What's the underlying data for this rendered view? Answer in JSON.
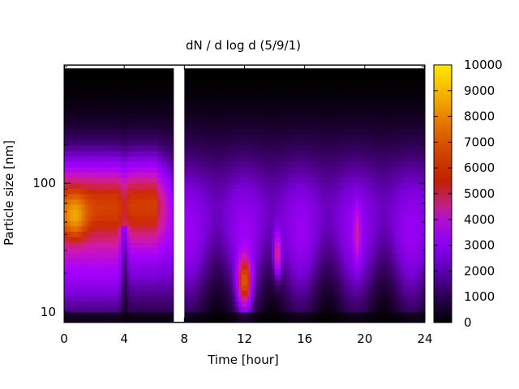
{
  "chart_data": {
    "type": "heatmap",
    "title": "dN / d log d (5/9/1)",
    "xlabel": "Time [hour]",
    "ylabel": "Particle size [nm]",
    "x_range": [
      0,
      24
    ],
    "x_ticks": [
      0,
      4,
      8,
      12,
      16,
      20,
      24
    ],
    "x_tick_labels": [
      "0",
      "4",
      "8",
      "12",
      "16",
      "20",
      "24"
    ],
    "y_scale": "log",
    "y_range": [
      8.3,
      830
    ],
    "y_ticks": [
      10,
      100
    ],
    "y_tick_labels": [
      "10",
      "100"
    ],
    "colorbar": {
      "range": [
        0,
        10000
      ],
      "ticks": [
        0,
        1000,
        2000,
        3000,
        4000,
        5000,
        6000,
        7000,
        8000,
        9000,
        10000
      ],
      "tick_labels": [
        "0",
        "1000",
        "2000",
        "3000",
        "4000",
        "5000",
        "6000",
        "7000",
        "8000",
        "9000",
        "10000"
      ],
      "palette": [
        "#000000",
        "#3a0066",
        "#7a00d8",
        "#a800ff",
        "#d21aa8",
        "#cc2a00",
        "#e06000",
        "#f0a000",
        "#ffe000"
      ]
    },
    "data_gap_hours": [
      7.3,
      8.0
    ],
    "modes": [
      {
        "x_range": [
          0,
          7.2
        ],
        "peak_time": 0.7,
        "peak_diameter_nm": 55,
        "peak_value": 8500
      },
      {
        "x_range": [
          0,
          7.2
        ],
        "typical_diameter_nm": 70,
        "typical_value": 6000
      },
      {
        "x_range": [
          3.8,
          4.2
        ],
        "feature": "dip to low values",
        "value": 1500
      },
      {
        "x_range": [
          11.5,
          12.6
        ],
        "peak_time": 12.0,
        "peak_diameter_nm": 17,
        "peak_value": 7000
      },
      {
        "x_range": [
          13.9,
          14.5
        ],
        "peak_time": 14.2,
        "peak_diameter_nm": 28,
        "peak_value": 5500
      },
      {
        "x_range": [
          19.3,
          19.7
        ],
        "peak_time": 19.5,
        "peak_diameter_nm": 40,
        "peak_value": 4200
      },
      {
        "x_range": [
          8,
          24
        ],
        "background_diameter_nm": 50,
        "background_value": 2500
      }
    ]
  }
}
